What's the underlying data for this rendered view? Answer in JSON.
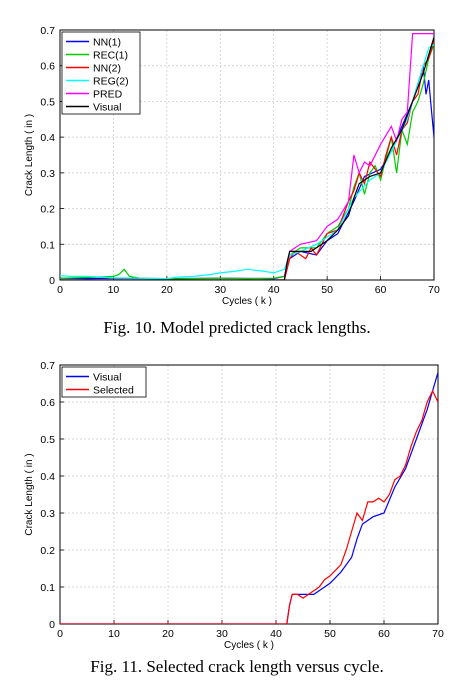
{
  "chart_data": [
    {
      "type": "line",
      "caption": "Fig. 10.  Model predicted crack lengths.",
      "xlabel": "Cycles ( k )",
      "ylabel": "Crack Length ( in )",
      "xlim": [
        0,
        70
      ],
      "ylim": [
        0,
        0.7
      ],
      "xticks": [
        "0",
        "10",
        "20",
        "30",
        "40",
        "50",
        "60",
        "70"
      ],
      "yticks": [
        "0",
        "0.1",
        "0.2",
        "0.3",
        "0.4",
        "0.5",
        "0.6",
        "0.7"
      ],
      "grid": true,
      "legend_position": "top-left",
      "series": [
        {
          "name": "NN(1)",
          "color": "#0000ff",
          "x": [
            0,
            5,
            10,
            20,
            30,
            40,
            42,
            43,
            45,
            48,
            50,
            52,
            55,
            57,
            60,
            62,
            64,
            66,
            68,
            68.5,
            69,
            69.5,
            70
          ],
          "y": [
            0.005,
            0.004,
            0.005,
            0.004,
            0.005,
            0.004,
            0.01,
            0.06,
            0.08,
            0.07,
            0.11,
            0.13,
            0.22,
            0.29,
            0.31,
            0.36,
            0.43,
            0.5,
            0.6,
            0.52,
            0.56,
            0.48,
            0.4
          ]
        },
        {
          "name": "REC(1)",
          "color": "#00cc00",
          "x": [
            0,
            5,
            10,
            11,
            12,
            13,
            15,
            20,
            25,
            30,
            35,
            40,
            42,
            43,
            45,
            48,
            50,
            52,
            54,
            55,
            56,
            57,
            58,
            59,
            60,
            61,
            62,
            63,
            64,
            65,
            66,
            67,
            68,
            69,
            70
          ],
          "y": [
            0.005,
            0.007,
            0.01,
            0.015,
            0.03,
            0.01,
            0.005,
            0.003,
            0.004,
            0.005,
            0.004,
            0.005,
            0.01,
            0.07,
            0.09,
            0.09,
            0.13,
            0.15,
            0.2,
            0.26,
            0.3,
            0.24,
            0.3,
            0.32,
            0.28,
            0.34,
            0.4,
            0.3,
            0.42,
            0.38,
            0.47,
            0.5,
            0.55,
            0.62,
            0.66
          ]
        },
        {
          "name": "NN(2)",
          "color": "#ff0000",
          "x": [
            0,
            10,
            20,
            30,
            40,
            42,
            43,
            44,
            45,
            46,
            47,
            48,
            50,
            52,
            54,
            55,
            56,
            57,
            58,
            60,
            61,
            62,
            63,
            64,
            65,
            66,
            67,
            68,
            69,
            70
          ],
          "y": [
            0,
            0,
            0,
            0,
            0,
            0,
            0.06,
            0.08,
            0.07,
            0.06,
            0.09,
            0.07,
            0.13,
            0.14,
            0.22,
            0.25,
            0.3,
            0.27,
            0.33,
            0.29,
            0.35,
            0.4,
            0.35,
            0.42,
            0.44,
            0.5,
            0.52,
            0.6,
            0.62,
            0.67
          ]
        },
        {
          "name": "REG(2)",
          "color": "#00ffff",
          "x": [
            0,
            2,
            5,
            8,
            10,
            15,
            20,
            22,
            25,
            28,
            30,
            33,
            35,
            38,
            40,
            42,
            43,
            45,
            48,
            50,
            52,
            55,
            58,
            60,
            62,
            65,
            67,
            68,
            69,
            70
          ],
          "y": [
            0.012,
            0.01,
            0.01,
            0.008,
            0.006,
            0.005,
            0.004,
            0.008,
            0.01,
            0.015,
            0.02,
            0.025,
            0.03,
            0.025,
            0.02,
            0.03,
            0.07,
            0.08,
            0.1,
            0.12,
            0.14,
            0.23,
            0.28,
            0.3,
            0.36,
            0.45,
            0.55,
            0.6,
            0.65,
            0.66
          ]
        },
        {
          "name": "PRED",
          "color": "#ff00ff",
          "x": [
            42,
            43,
            45,
            48,
            50,
            52,
            54,
            55,
            56,
            57,
            58,
            60,
            62,
            63,
            64,
            65,
            66,
            68,
            70
          ],
          "y": [
            0.01,
            0.08,
            0.1,
            0.11,
            0.15,
            0.17,
            0.22,
            0.35,
            0.3,
            0.33,
            0.32,
            0.38,
            0.43,
            0.39,
            0.45,
            0.47,
            0.69,
            0.69,
            0.69
          ]
        },
        {
          "name": "Visual",
          "color": "#000000",
          "x": [
            0,
            42,
            42.5,
            43,
            45,
            47,
            50,
            52,
            54,
            55,
            56,
            58,
            60,
            62,
            64,
            66,
            68,
            70
          ],
          "y": [
            0,
            0,
            0.05,
            0.08,
            0.08,
            0.08,
            0.11,
            0.14,
            0.18,
            0.23,
            0.27,
            0.29,
            0.3,
            0.37,
            0.42,
            0.5,
            0.58,
            0.68
          ]
        }
      ]
    },
    {
      "type": "line",
      "caption": "Fig. 11.  Selected crack length versus cycle.",
      "xlabel": "Cycles ( k )",
      "ylabel": "Crack Length ( in )",
      "xlim": [
        0,
        70
      ],
      "ylim": [
        0,
        0.7
      ],
      "xticks": [
        "0",
        "10",
        "20",
        "30",
        "40",
        "50",
        "60",
        "70"
      ],
      "yticks": [
        "0",
        "0.1",
        "0.2",
        "0.3",
        "0.4",
        "0.5",
        "0.6",
        "0.7"
      ],
      "grid": true,
      "legend_position": "top-left",
      "series": [
        {
          "name": "Visual",
          "color": "#0000ff",
          "x": [
            0,
            42,
            42.5,
            43,
            45,
            47,
            50,
            52,
            54,
            55,
            56,
            58,
            60,
            62,
            64,
            66,
            68,
            70
          ],
          "y": [
            0,
            0,
            0.05,
            0.08,
            0.08,
            0.08,
            0.11,
            0.14,
            0.18,
            0.23,
            0.27,
            0.29,
            0.3,
            0.37,
            0.42,
            0.5,
            0.58,
            0.68
          ]
        },
        {
          "name": "Selected",
          "color": "#ff0000",
          "x": [
            0,
            42,
            42.5,
            43,
            44,
            45,
            46,
            47,
            48,
            49,
            50,
            52,
            53,
            54,
            55,
            56,
            57,
            58,
            59,
            60,
            61,
            62,
            63,
            64,
            65,
            66,
            67,
            68,
            69,
            70
          ],
          "y": [
            0,
            0,
            0.05,
            0.08,
            0.08,
            0.07,
            0.08,
            0.09,
            0.1,
            0.12,
            0.13,
            0.16,
            0.2,
            0.25,
            0.3,
            0.28,
            0.33,
            0.33,
            0.34,
            0.33,
            0.35,
            0.39,
            0.4,
            0.43,
            0.48,
            0.52,
            0.55,
            0.6,
            0.63,
            0.6
          ]
        }
      ]
    }
  ]
}
